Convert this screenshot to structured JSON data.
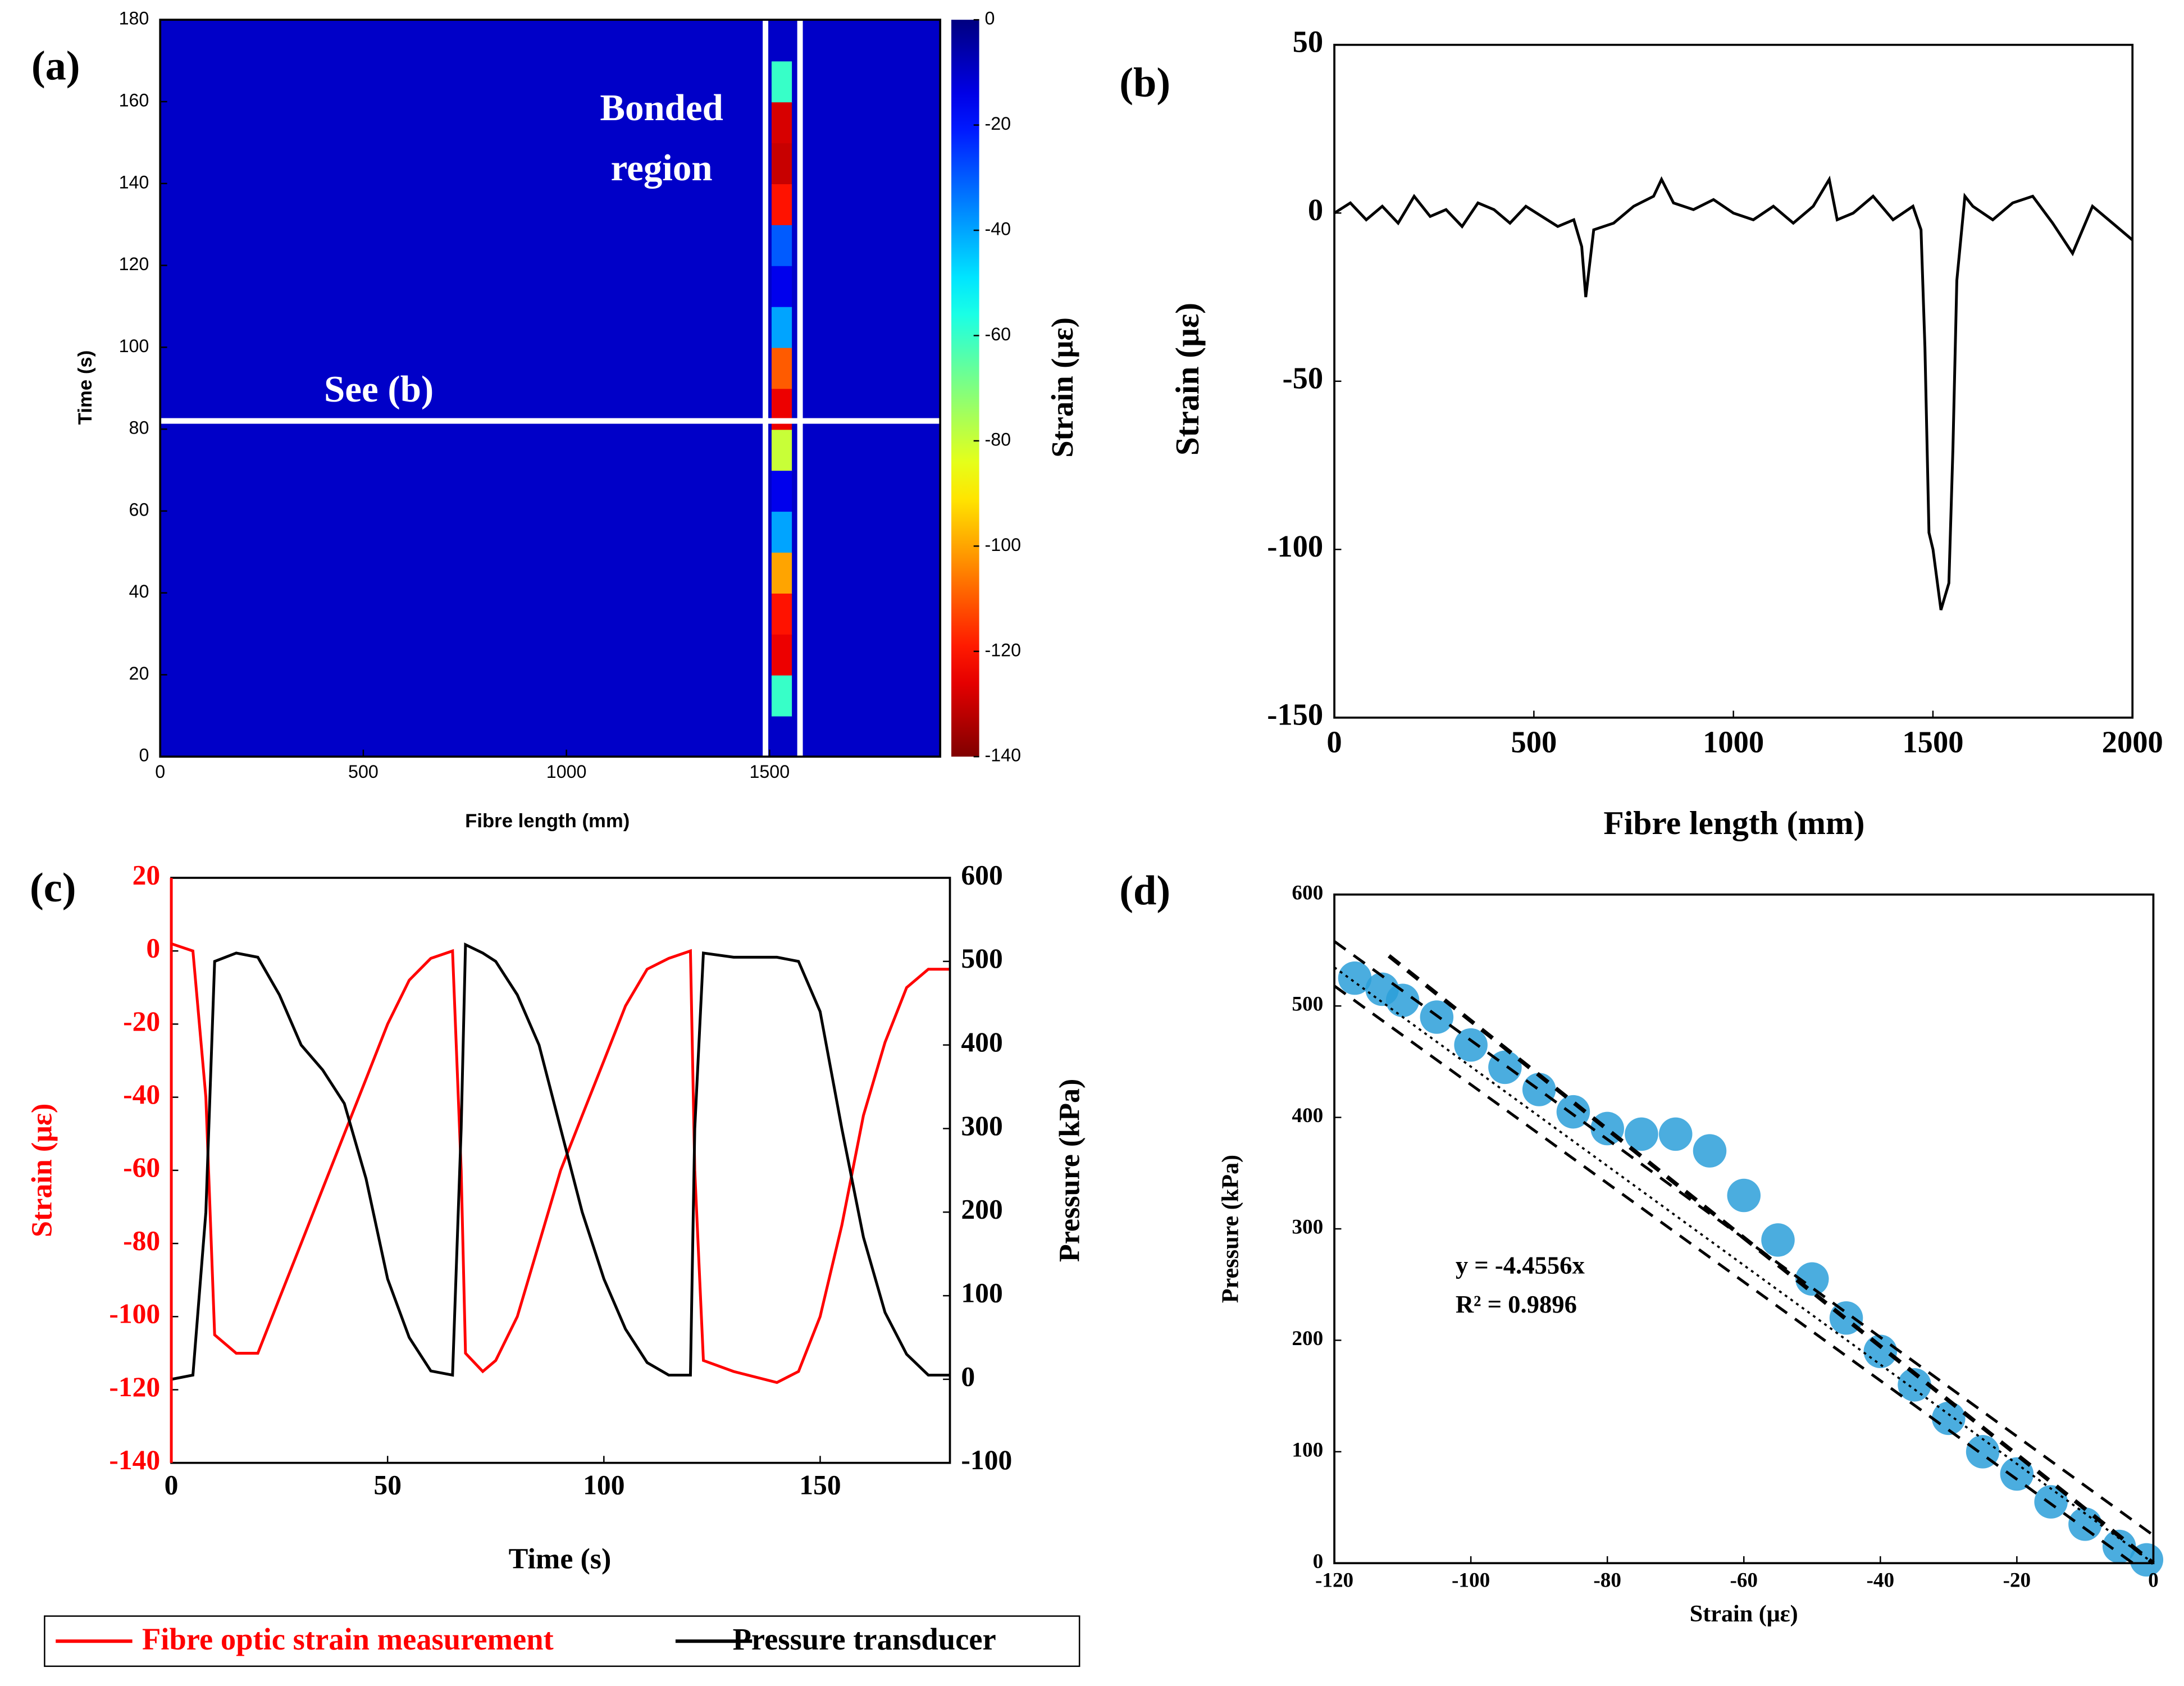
{
  "chart_data": [
    {
      "type": "heatmap",
      "panel": "(a)",
      "xlabel": "Fibre length (mm)",
      "ylabel": "Time (s)",
      "x": [
        0,
        1505,
        1555,
        1920
      ],
      "y": [
        0,
        10,
        20,
        30,
        40,
        50,
        60,
        70,
        80,
        90,
        100,
        110,
        120,
        130,
        140,
        150,
        160,
        170,
        180
      ],
      "values": [
        [
          -10,
          -10,
          -10
        ],
        [
          -10,
          -60,
          -10
        ],
        [
          -10,
          -125,
          -10
        ],
        [
          -10,
          -120,
          -10
        ],
        [
          -10,
          -100,
          -10
        ],
        [
          -10,
          -40,
          -10
        ],
        [
          -10,
          -15,
          -10
        ],
        [
          -10,
          -80,
          -10
        ],
        [
          -10,
          -125,
          -10
        ],
        [
          -10,
          -110,
          -10
        ],
        [
          -10,
          -40,
          -10
        ],
        [
          -10,
          -15,
          -10
        ],
        [
          -10,
          -30,
          -10
        ],
        [
          -10,
          -120,
          -10
        ],
        [
          -10,
          -130,
          -10
        ],
        [
          -10,
          -128,
          -10
        ],
        [
          -10,
          -60,
          -10
        ],
        [
          -10,
          -10,
          -10
        ]
      ],
      "xlim": [
        0,
        1920
      ],
      "xticks": [
        0,
        500,
        1000,
        1500
      ],
      "ylim": [
        0,
        180
      ],
      "yticks": [
        0,
        20,
        40,
        60,
        80,
        100,
        120,
        140,
        160,
        180
      ],
      "marker_x": [
        1490,
        1575
      ],
      "marker_y": 82,
      "annotations": [
        "Bonded",
        "region",
        "See  (b)"
      ],
      "colorbar": {
        "label": "Strain (με)",
        "lim": [
          -140,
          0
        ],
        "ticks": [
          0,
          -20,
          -40,
          -60,
          -80,
          -100,
          -120,
          -140
        ]
      }
    },
    {
      "type": "line",
      "panel": "(b)",
      "xlabel": "Fibre length (mm)",
      "ylabel": "Strain (με)",
      "x": [
        0,
        40,
        80,
        120,
        160,
        200,
        240,
        280,
        320,
        360,
        400,
        440,
        480,
        520,
        560,
        600,
        620,
        630,
        650,
        700,
        750,
        800,
        820,
        850,
        900,
        950,
        1000,
        1050,
        1100,
        1150,
        1200,
        1240,
        1260,
        1300,
        1350,
        1400,
        1450,
        1470,
        1480,
        1490,
        1500,
        1520,
        1540,
        1550,
        1560,
        1580,
        1600,
        1650,
        1700,
        1750,
        1800,
        1850,
        1900,
        1950,
        2000
      ],
      "series": [
        {
          "color": "#000000",
          "values": [
            0,
            3,
            -2,
            2,
            -3,
            5,
            -1,
            1,
            -4,
            3,
            1,
            -3,
            2,
            -1,
            -4,
            -2,
            -10,
            -25,
            -5,
            -3,
            2,
            5,
            10,
            3,
            1,
            4,
            0,
            -2,
            2,
            -3,
            2,
            10,
            -2,
            0,
            5,
            -2,
            2,
            -5,
            -40,
            -95,
            -100,
            -118,
            -110,
            -70,
            -20,
            5,
            2,
            -2,
            3,
            5,
            -3,
            -12,
            2,
            -3,
            -8
          ]
        }
      ],
      "xlim": [
        0,
        2000
      ],
      "xticks": [
        0,
        500,
        1000,
        1500,
        2000
      ],
      "ylim": [
        -150,
        50
      ],
      "yticks": [
        -150,
        -100,
        -50,
        0,
        50
      ]
    },
    {
      "type": "line",
      "panel": "(c)",
      "xlabel": "Time (s)",
      "ylabel": "Strain (με)",
      "y2label": "Pressure (kPa)",
      "x": [
        0,
        5,
        8,
        10,
        15,
        20,
        25,
        30,
        35,
        40,
        45,
        50,
        55,
        60,
        65,
        67,
        68,
        72,
        75,
        80,
        85,
        90,
        95,
        100,
        105,
        110,
        115,
        120,
        121,
        123,
        130,
        140,
        145,
        150,
        155,
        160,
        165,
        170,
        175,
        180
      ],
      "series": [
        {
          "name": "Fibre optic strain measurement",
          "color": "#ff0000",
          "values": [
            2,
            0,
            -40,
            -105,
            -110,
            -110,
            -95,
            -80,
            -65,
            -50,
            -35,
            -20,
            -8,
            -2,
            0,
            -60,
            -110,
            -115,
            -112,
            -100,
            -80,
            -60,
            -45,
            -30,
            -15,
            -5,
            -2,
            0,
            -60,
            -112,
            -115,
            -118,
            -115,
            -100,
            -75,
            -45,
            -25,
            -10,
            -5,
            -5
          ]
        },
        {
          "name": "Pressure transducer",
          "color": "#000000",
          "axis": "y2",
          "values": [
            0,
            5,
            200,
            500,
            510,
            505,
            460,
            400,
            370,
            330,
            240,
            120,
            50,
            10,
            5,
            300,
            520,
            510,
            500,
            460,
            400,
            300,
            200,
            120,
            60,
            20,
            5,
            5,
            300,
            510,
            505,
            505,
            500,
            440,
            300,
            170,
            80,
            30,
            5,
            5
          ]
        }
      ],
      "xlim": [
        0,
        180
      ],
      "xticks": [
        0,
        50,
        100,
        150
      ],
      "ylim": [
        -140,
        20
      ],
      "yticks": [
        -140,
        -120,
        -100,
        -80,
        -60,
        -40,
        -20,
        0,
        20
      ],
      "y2lim": [
        -100,
        600
      ],
      "y2ticks": [
        -100,
        0,
        100,
        200,
        300,
        400,
        500,
        600
      ],
      "legend": "bottom"
    },
    {
      "type": "scatter",
      "panel": "(d)",
      "xlabel": "Strain (με)",
      "ylabel": "Pressure (kPa)",
      "color": "#2b9fd9",
      "x": [
        -117,
        -113,
        -110,
        -105,
        -100,
        -95,
        -90,
        -85,
        -80,
        -75,
        -70,
        -65,
        -60,
        -55,
        -50,
        -45,
        -40,
        -35,
        -30,
        -25,
        -20,
        -15,
        -10,
        -5,
        -1
      ],
      "values": [
        525,
        515,
        505,
        490,
        465,
        445,
        425,
        405,
        390,
        385,
        385,
        370,
        330,
        290,
        255,
        220,
        190,
        160,
        130,
        100,
        80,
        55,
        35,
        15,
        3
      ],
      "fit": {
        "slope": -4.4556,
        "label": "y = -4.4556x"
      },
      "r2_label": "R² = 0.9896",
      "bounds": [
        {
          "x": [
            -120,
            0
          ],
          "values": [
            558,
            25
          ]
        },
        {
          "x": [
            -120,
            -3
          ],
          "values": [
            518,
            0
          ]
        },
        {
          "x": [
            -112,
            0
          ],
          "values": [
            545,
            0
          ]
        }
      ],
      "xlim": [
        -120,
        0
      ],
      "xticks": [
        -120,
        -100,
        -80,
        -60,
        -40,
        -20,
        0
      ],
      "ylim": [
        0,
        600
      ],
      "yticks": [
        0,
        100,
        200,
        300,
        400,
        500,
        600
      ]
    }
  ]
}
